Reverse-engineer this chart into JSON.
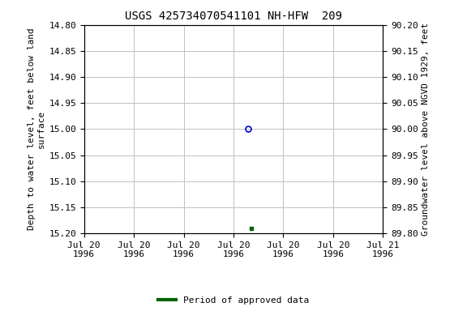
{
  "title": "USGS 425734070541101 NH-HFW  209",
  "ylabel_left": "Depth to water level, feet below land\nsurface",
  "ylabel_right": "Groundwater level above NGVD 1929, feet",
  "ylim_left": [
    15.2,
    14.8
  ],
  "ylim_right": [
    89.8,
    90.2
  ],
  "yticks_left": [
    14.8,
    14.85,
    14.9,
    14.95,
    15.0,
    15.05,
    15.1,
    15.15,
    15.2
  ],
  "yticks_right": [
    90.2,
    90.15,
    90.1,
    90.05,
    90.0,
    89.95,
    89.9,
    89.85,
    89.8
  ],
  "open_circle_value": 15.0,
  "open_circle_color": "#0000cc",
  "filled_square_value": 15.19,
  "filled_square_color": "#006400",
  "legend_label": "Period of approved data",
  "legend_color": "#006400",
  "background_color": "#ffffff",
  "grid_color": "#c0c0c0",
  "title_fontsize": 10,
  "axis_label_fontsize": 8,
  "tick_fontsize": 8
}
